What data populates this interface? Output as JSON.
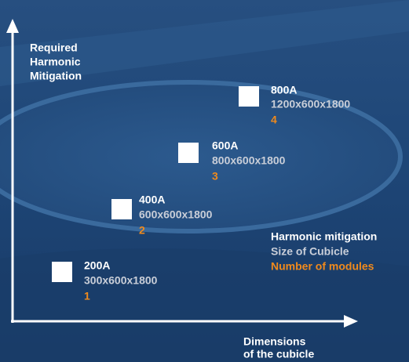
{
  "y_axis_label": [
    "Required",
    "Harmonic",
    "Mitigation"
  ],
  "x_axis_label": [
    "Dimensions",
    "of the cubicle"
  ],
  "items": [
    {
      "rating": "200A",
      "size": "300x600x1800",
      "modules": "1"
    },
    {
      "rating": "400A",
      "size": "600x600x1800",
      "modules": "2"
    },
    {
      "rating": "600A",
      "size": "800x600x1800",
      "modules": "3"
    },
    {
      "rating": "800A",
      "size": "1200x600x1800",
      "modules": "4"
    }
  ],
  "legend": [
    "Harmonic mitigation",
    "Size of Cubicle",
    "Number of modules"
  ]
}
